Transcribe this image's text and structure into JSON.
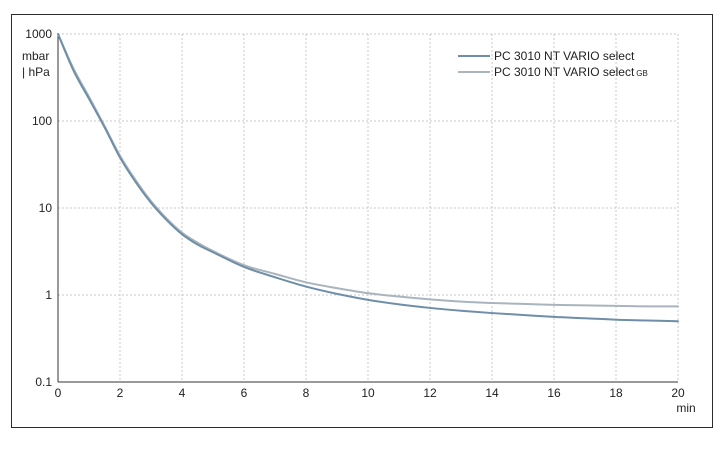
{
  "chart_data": {
    "type": "line",
    "title": "",
    "xlabel": "min",
    "ylabel": "mbar | hPa",
    "ylabel_lines": [
      "mbar",
      "| hPa"
    ],
    "x_scale": "linear",
    "y_scale": "log",
    "xlim": [
      0,
      20
    ],
    "ylim": [
      0.1,
      1000
    ],
    "x_ticks": [
      0,
      2,
      4,
      6,
      8,
      10,
      12,
      14,
      16,
      18,
      20
    ],
    "x_tick_labels": [
      "0",
      "2",
      "4",
      "6",
      "8",
      "10",
      "12",
      "14",
      "16",
      "18",
      "20"
    ],
    "y_ticks": [
      0.1,
      1,
      10,
      100,
      1000
    ],
    "y_tick_labels": [
      "0.1",
      "1",
      "10",
      "100",
      "1000"
    ],
    "grid": true,
    "legend_position": "top-right",
    "series": [
      {
        "name": "PC 3010 NT VARIO select",
        "name_main": "PC 3010 NT VARIO select",
        "name_sub": "",
        "color": "#6f8fa8",
        "x": [
          0,
          0.5,
          1,
          1.5,
          2,
          2.5,
          3,
          3.5,
          4,
          4.5,
          5,
          6,
          7,
          8,
          9,
          10,
          11,
          12,
          13,
          14,
          15,
          16,
          17,
          18,
          19,
          20
        ],
        "y": [
          1000,
          380,
          180,
          85,
          38,
          20,
          11.5,
          7.3,
          5.0,
          3.8,
          3.1,
          2.1,
          1.6,
          1.25,
          1.03,
          0.88,
          0.78,
          0.71,
          0.66,
          0.62,
          0.59,
          0.56,
          0.54,
          0.52,
          0.51,
          0.5
        ]
      },
      {
        "name": "PC 3010 NT VARIO select GB",
        "name_main": "PC 3010 NT VARIO select",
        "name_sub": "GB",
        "color": "#a9b4bc",
        "x": [
          0,
          0.5,
          1,
          1.5,
          2,
          2.5,
          3,
          3.5,
          4,
          4.5,
          5,
          6,
          7,
          8,
          9,
          10,
          11,
          12,
          13,
          14,
          15,
          16,
          17,
          18,
          19,
          20
        ],
        "y": [
          1000,
          400,
          190,
          88,
          40,
          21,
          12,
          7.6,
          5.2,
          4.0,
          3.2,
          2.2,
          1.75,
          1.4,
          1.2,
          1.05,
          0.96,
          0.89,
          0.84,
          0.81,
          0.79,
          0.77,
          0.76,
          0.75,
          0.74,
          0.74
        ]
      }
    ]
  }
}
